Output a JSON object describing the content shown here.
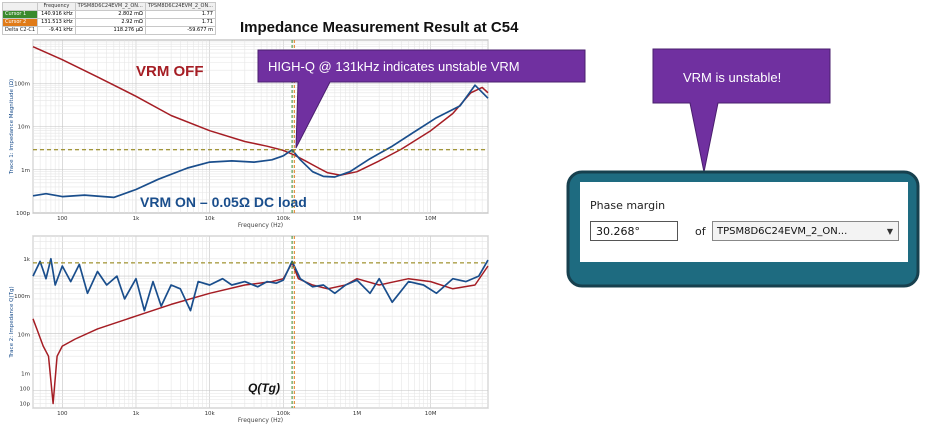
{
  "title": "Impedance Measurement Result at C54",
  "cursor_table": {
    "headers": [
      "",
      "Frequency",
      "TPSM8D6C24EVM_2_ON...",
      "TPSM8D6C24EVM_2_ON..."
    ],
    "rows": [
      {
        "label": "Cursor 1",
        "color": "#3a8a2e",
        "values": [
          "140.916 kHz",
          "2.802 mΩ",
          "1.77"
        ]
      },
      {
        "label": "Cursor 2",
        "color": "#e07b18",
        "values": [
          "131.513 kHz",
          "2.92 mΩ",
          "1.71"
        ]
      },
      {
        "label": "Delta C2-C1",
        "color": "#ffffff",
        "values": [
          "-9.41 kHz",
          "118.276 µΩ",
          "-59.677 m"
        ]
      }
    ]
  },
  "annotations": {
    "vrm_off": "VRM OFF",
    "vrm_on": "VRM ON – 0.05Ω DC load",
    "high_q": "HIGH-Q @ 131kHz indicates unstable VRM",
    "q_tg": "Q(Tg)",
    "unstable": "VRM is unstable!"
  },
  "phase_margin": {
    "label": "Phase margin",
    "value": "30.268°",
    "of_label": "of",
    "selected": "TPSM8D6C24EVM_2_ON..."
  },
  "colors": {
    "vrm_off": "#a51d24",
    "vrm_on": "#1a4e8c",
    "callout": "#7030a0",
    "panel_border": "#1f4e60",
    "panel_fill": "#1e6b80",
    "cursor_green": "#3a8a2e",
    "cursor_orange": "#e07b18"
  },
  "chart_data": [
    {
      "type": "line",
      "title": "",
      "xlabel": "Frequency (Hz)",
      "ylabel": "Trace 1: Impedance Magnitude (Ω)",
      "xscale": "log",
      "yscale": "log",
      "xlim": [
        40,
        60000000
      ],
      "ylim": [
        0.0001,
        1
      ],
      "x_ticks": [
        "100",
        "1k",
        "10k",
        "100k",
        "1M",
        "10M"
      ],
      "y_ticks": [
        "100p",
        "1m",
        "10m",
        "100m"
      ],
      "grid": true,
      "cursors_x": [
        131513,
        140916
      ],
      "cursor_y": 0.0029,
      "series": [
        {
          "name": "VRM OFF",
          "color": "#a51d24",
          "x": [
            40,
            100,
            300,
            1000,
            3000,
            10000,
            30000,
            60000,
            100000,
            140000,
            200000,
            300000,
            400000,
            600000,
            1000000,
            2000000,
            4000000,
            10000000,
            20000000,
            35000000,
            50000000,
            60000000
          ],
          "y": [
            0.7,
            0.35,
            0.14,
            0.05,
            0.018,
            0.008,
            0.0045,
            0.0035,
            0.0028,
            0.0022,
            0.0016,
            0.0011,
            0.00085,
            0.00075,
            0.0009,
            0.0016,
            0.003,
            0.008,
            0.02,
            0.06,
            0.08,
            0.06
          ]
        },
        {
          "name": "VRM ON – 0.05Ω DC load",
          "color": "#1a4e8c",
          "x": [
            40,
            60,
            100,
            200,
            500,
            1000,
            2000,
            5000,
            10000,
            20000,
            40000,
            70000,
            100000,
            131513,
            170000,
            250000,
            350000,
            500000,
            800000,
            1500000,
            3000000,
            6000000,
            12000000,
            25000000,
            40000000,
            60000000
          ],
          "y": [
            0.00025,
            0.00028,
            0.00024,
            0.00026,
            0.00023,
            0.00035,
            0.0006,
            0.0011,
            0.0015,
            0.0016,
            0.0015,
            0.0017,
            0.0021,
            0.0029,
            0.0017,
            0.0009,
            0.0007,
            0.00068,
            0.0009,
            0.0018,
            0.0035,
            0.0075,
            0.016,
            0.03,
            0.09,
            0.045
          ]
        }
      ]
    },
    {
      "type": "line",
      "title": "",
      "xlabel": "Frequency (Hz)",
      "ylabel": "Trace 2: Impedance Q(Tg)",
      "xscale": "log",
      "yscale": "log",
      "xlim": [
        40,
        60000000
      ],
      "ylim": [
        5,
        5000
      ],
      "x_ticks": [
        "100",
        "1k",
        "10k",
        "100k",
        "1M",
        "10M"
      ],
      "y_ticks": [
        "1k",
        "100m",
        "10m",
        "1m",
        "100",
        "10p"
      ],
      "grid": true,
      "cursors_x": [
        131513,
        140916
      ],
      "cursor_y": 1700,
      "series": [
        {
          "name": "VRM OFF",
          "color": "#a51d24",
          "x": [
            40,
            45,
            55,
            65,
            75,
            85,
            100,
            150,
            300,
            1000,
            3000,
            10000,
            30000,
            70000,
            100000,
            131513,
            160000,
            250000,
            400000,
            700000,
            1000000,
            2000000,
            5000000,
            10000000,
            20000000,
            40000000,
            60000000
          ],
          "y": [
            180,
            120,
            60,
            40,
            6,
            40,
            60,
            80,
            120,
            200,
            320,
            500,
            700,
            800,
            900,
            1700,
            900,
            700,
            600,
            700,
            900,
            700,
            900,
            800,
            600,
            700,
            1500
          ]
        },
        {
          "name": "VRM ON – 0.05Ω DC load",
          "color": "#1a4e8c",
          "x": [
            40,
            50,
            60,
            70,
            80,
            100,
            130,
            170,
            220,
            300,
            400,
            550,
            700,
            1000,
            1300,
            1700,
            2200,
            3000,
            4000,
            5500,
            7000,
            10000,
            15000,
            20000,
            30000,
            45000,
            60000,
            80000,
            100000,
            131513,
            170000,
            250000,
            350000,
            500000,
            700000,
            1000000,
            1500000,
            2000000,
            3000000,
            5000000,
            8000000,
            12000000,
            20000000,
            30000000,
            45000000,
            60000000
          ],
          "y": [
            1000,
            1800,
            900,
            2000,
            700,
            1500,
            800,
            1600,
            500,
            1200,
            700,
            1000,
            400,
            900,
            250,
            800,
            300,
            700,
            600,
            250,
            800,
            700,
            900,
            700,
            800,
            650,
            800,
            750,
            850,
            1800,
            900,
            650,
            700,
            500,
            700,
            850,
            500,
            900,
            350,
            800,
            700,
            500,
            900,
            800,
            1000,
            1900
          ]
        }
      ]
    }
  ]
}
